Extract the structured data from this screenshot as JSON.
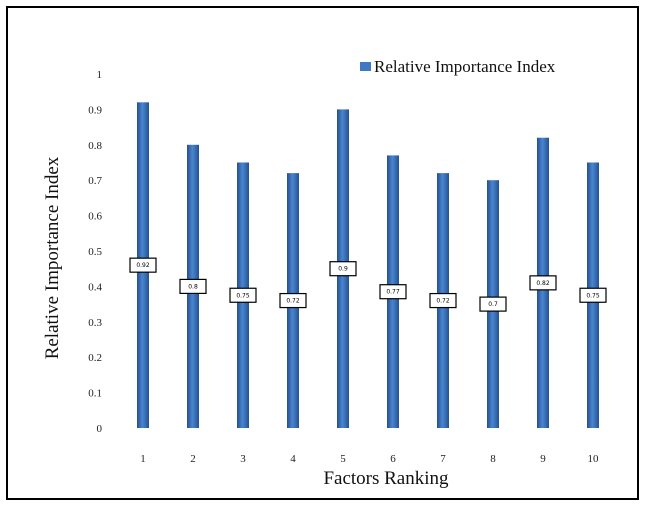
{
  "chart_data": {
    "type": "bar",
    "categories": [
      "1",
      "2",
      "3",
      "4",
      "5",
      "6",
      "7",
      "8",
      "9",
      "10"
    ],
    "series": [
      {
        "name": "Relative Importance Index",
        "values": [
          0.92,
          0.8,
          0.75,
          0.72,
          0.9,
          0.77,
          0.72,
          0.7,
          0.82,
          0.75
        ],
        "data_labels": [
          "0.92",
          "0.8",
          "0.75",
          "0.72",
          "0.9",
          "0.77",
          "0.72",
          "0.7",
          "0.82",
          "0.75"
        ],
        "color": "#3f78c3"
      }
    ],
    "xlabel": "Factors Ranking",
    "ylabel": "Relative Importance Index",
    "ylim": [
      0,
      1
    ],
    "yticks": [
      "0",
      "0.1",
      "0.2",
      "0.3",
      "0.4",
      "0.5",
      "0.6",
      "0.7",
      "0.8",
      "0.9",
      "1"
    ],
    "grid": false,
    "legend_position": "top-right"
  }
}
